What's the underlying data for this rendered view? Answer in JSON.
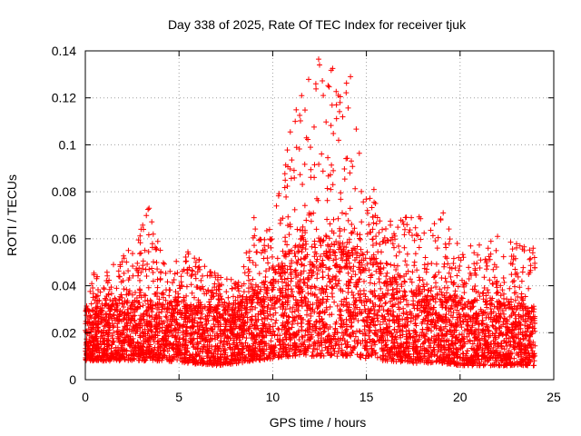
{
  "chart_data": {
    "type": "scatter",
    "title": "Day 338 of 2025, Rate Of TEC Index for receiver tjuk",
    "xlabel": "GPS time / hours",
    "ylabel": "ROTI / TECUs",
    "xlim": [
      0,
      25
    ],
    "ylim": [
      0,
      0.14
    ],
    "xticks": [
      "0",
      "5",
      "10",
      "15",
      "20",
      "25"
    ],
    "yticks": [
      "0",
      "0.02",
      "0.04",
      "0.06",
      "0.08",
      "0.1",
      "0.12",
      "0.14"
    ],
    "grid": true,
    "marker": "plus",
    "color": "#ff0000",
    "series": [
      {
        "name": "ROTI",
        "x_range": [
          0,
          24
        ],
        "envelope": [
          {
            "x": 0.0,
            "base_low": 0.008,
            "base_high": 0.028,
            "peak": 0.03
          },
          {
            "x": 0.5,
            "base_low": 0.008,
            "base_high": 0.03,
            "peak": 0.047
          },
          {
            "x": 1.5,
            "base_low": 0.008,
            "base_high": 0.032,
            "peak": 0.049
          },
          {
            "x": 2.3,
            "base_low": 0.008,
            "base_high": 0.033,
            "peak": 0.055
          },
          {
            "x": 3.4,
            "base_low": 0.008,
            "base_high": 0.032,
            "peak": 0.073
          },
          {
            "x": 4.3,
            "base_low": 0.008,
            "base_high": 0.032,
            "peak": 0.05
          },
          {
            "x": 5.5,
            "base_low": 0.007,
            "base_high": 0.033,
            "peak": 0.055
          },
          {
            "x": 7.0,
            "base_low": 0.006,
            "base_high": 0.03,
            "peak": 0.045
          },
          {
            "x": 8.2,
            "base_low": 0.007,
            "base_high": 0.032,
            "peak": 0.042
          },
          {
            "x": 9.0,
            "base_low": 0.008,
            "base_high": 0.036,
            "peak": 0.068
          },
          {
            "x": 10.0,
            "base_low": 0.009,
            "base_high": 0.042,
            "peak": 0.067
          },
          {
            "x": 11.0,
            "base_low": 0.01,
            "base_high": 0.055,
            "peak": 0.115
          },
          {
            "x": 12.5,
            "base_low": 0.01,
            "base_high": 0.06,
            "peak": 0.137
          },
          {
            "x": 13.2,
            "base_low": 0.01,
            "base_high": 0.058,
            "peak": 0.133
          },
          {
            "x": 14.0,
            "base_low": 0.01,
            "base_high": 0.058,
            "peak": 0.13
          },
          {
            "x": 15.0,
            "base_low": 0.009,
            "base_high": 0.052,
            "peak": 0.081
          },
          {
            "x": 16.0,
            "base_low": 0.008,
            "base_high": 0.045,
            "peak": 0.07
          },
          {
            "x": 17.5,
            "base_low": 0.007,
            "base_high": 0.038,
            "peak": 0.069
          },
          {
            "x": 19.0,
            "base_low": 0.007,
            "base_high": 0.036,
            "peak": 0.071
          },
          {
            "x": 20.0,
            "base_low": 0.006,
            "base_high": 0.034,
            "peak": 0.056
          },
          {
            "x": 22.0,
            "base_low": 0.006,
            "base_high": 0.033,
            "peak": 0.061
          },
          {
            "x": 23.0,
            "base_low": 0.006,
            "base_high": 0.033,
            "peak": 0.058
          },
          {
            "x": 24.0,
            "base_low": 0.006,
            "base_high": 0.03,
            "peak": 0.056
          }
        ],
        "highlights": [
          {
            "x": 3.35,
            "y": 0.0725
          },
          {
            "x": 3.4,
            "y": 0.073
          },
          {
            "x": 12.45,
            "y": 0.1365
          },
          {
            "x": 12.5,
            "y": 0.134
          },
          {
            "x": 13.2,
            "y": 0.1325
          },
          {
            "x": 14.15,
            "y": 0.129
          },
          {
            "x": 11.2,
            "y": 0.11
          },
          {
            "x": 12.3,
            "y": 0.126
          },
          {
            "x": 12.7,
            "y": 0.121
          },
          {
            "x": 13.4,
            "y": 0.117
          },
          {
            "x": 11.8,
            "y": 0.103
          },
          {
            "x": 10.2,
            "y": 0.074
          },
          {
            "x": 9.0,
            "y": 0.069
          },
          {
            "x": 15.4,
            "y": 0.081
          },
          {
            "x": 17.4,
            "y": 0.069
          },
          {
            "x": 19.1,
            "y": 0.071
          },
          {
            "x": 22.0,
            "y": 0.061
          },
          {
            "x": 23.2,
            "y": 0.057
          },
          {
            "x": 23.9,
            "y": 0.056
          },
          {
            "x": 2.3,
            "y": 0.055
          }
        ]
      }
    ]
  }
}
